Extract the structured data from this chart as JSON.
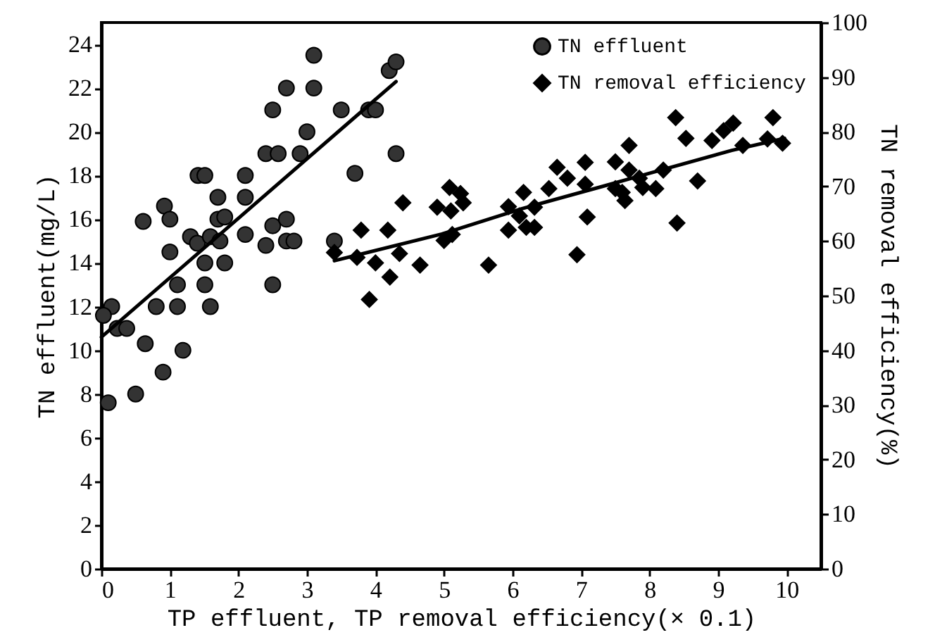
{
  "chart_data": {
    "type": "scatter",
    "xlabel": "TP effluent, TP removal efficiency(× 0.1)",
    "ylabel": "TN effluent(mg/L)",
    "y2label": "TN removal efficiency(%)",
    "xlim": [
      0,
      10.5
    ],
    "xticks": [
      0,
      1,
      2,
      3,
      4,
      5,
      6,
      7,
      8,
      9,
      10
    ],
    "ylim": [
      0,
      25
    ],
    "yticks": [
      0,
      2,
      4,
      6,
      8,
      10,
      12,
      14,
      16,
      18,
      20,
      22,
      24
    ],
    "y2lim": [
      0,
      100
    ],
    "y2ticks": [
      0,
      10,
      20,
      30,
      40,
      50,
      60,
      70,
      80,
      90,
      100
    ],
    "legend": "top right",
    "series": [
      {
        "name": "TN effluent",
        "marker": "circle",
        "color": "#333333",
        "x": [
          0.1,
          0.15,
          0.03,
          0.23,
          0.37,
          0.5,
          0.64,
          0.61,
          0.8,
          0.92,
          0.9,
          1.0,
          1.0,
          1.11,
          1.11,
          1.19,
          1.3,
          1.41,
          1.51,
          1.51,
          1.51,
          1.4,
          1.59,
          1.59,
          1.7,
          1.7,
          1.8,
          1.8,
          1.73,
          2.1,
          2.1,
          2.1,
          2.4,
          2.4,
          2.58,
          2.5,
          2.5,
          2.5,
          2.7,
          2.7,
          2.7,
          2.81,
          2.9,
          3.0,
          3.1,
          3.1,
          3.4,
          3.5,
          3.7,
          3.9,
          4.0,
          4.2,
          4.3,
          4.3
        ],
        "values": [
          7.6,
          12.0,
          11.6,
          11.0,
          11.0,
          8.0,
          10.3,
          15.9,
          12.0,
          16.6,
          9.0,
          16.0,
          14.5,
          12.0,
          13.0,
          10.0,
          15.2,
          18.0,
          18.0,
          13.0,
          14.0,
          14.9,
          12.0,
          15.2,
          17.0,
          16.0,
          16.1,
          14.0,
          15.0,
          18.0,
          17.0,
          15.3,
          14.8,
          19.0,
          19.0,
          21.0,
          13.0,
          15.7,
          22.0,
          16.0,
          15.0,
          15.0,
          19.0,
          20.0,
          22.0,
          23.5,
          15.0,
          21.0,
          18.1,
          21.0,
          21.0,
          22.8,
          23.2,
          19.0
        ]
      },
      {
        "name": "TN removal efficiency",
        "marker": "diamond",
        "axis": "y2",
        "color": "#000000",
        "x": [
          3.4,
          3.73,
          3.79,
          4.0,
          4.18,
          4.21,
          3.91,
          4.35,
          4.4,
          4.65,
          4.9,
          5.0,
          5.08,
          5.1,
          5.24,
          5.28,
          5.12,
          5.65,
          5.94,
          5.94,
          6.16,
          6.1,
          6.2,
          6.32,
          6.32,
          6.53,
          6.65,
          6.8,
          6.94,
          7.06,
          7.09,
          7.06,
          7.5,
          7.5,
          7.6,
          7.64,
          7.7,
          7.7,
          7.85,
          7.9,
          8.09,
          8.2,
          8.38,
          8.4,
          8.53,
          8.7,
          8.91,
          9.08,
          9.22,
          9.36,
          9.72,
          9.8,
          9.94
        ],
        "values": [
          57.9,
          57.0,
          62.0,
          56.0,
          62.0,
          53.4,
          49.3,
          57.7,
          67.0,
          55.6,
          66.2,
          60.1,
          69.8,
          65.5,
          68.7,
          67.0,
          61.2,
          55.6,
          62.0,
          66.3,
          68.9,
          64.6,
          62.5,
          62.5,
          66.2,
          69.6,
          73.5,
          71.5,
          57.5,
          74.4,
          64.4,
          70.4,
          74.5,
          69.6,
          68.9,
          67.4,
          77.5,
          73.0,
          71.5,
          69.8,
          69.6,
          73.0,
          82.6,
          63.3,
          78.8,
          71.0,
          78.4,
          80.2,
          81.6,
          77.5,
          78.7,
          82.6,
          77.9
        ]
      },
      {
        "type": "line",
        "marker": "none",
        "color": "#000000",
        "x": [
          0,
          4.3
        ],
        "values": [
          10.6,
          22.3
        ]
      },
      {
        "type": "line",
        "marker": "none",
        "axis": "y2",
        "color": "#000000",
        "x": [
          3.4,
          4.97,
          6.13,
          7.37,
          7.85,
          9.2,
          9.97
        ],
        "values": [
          56.4,
          61.3,
          65.9,
          70.2,
          71.9,
          76.6,
          78.8
        ]
      }
    ]
  }
}
